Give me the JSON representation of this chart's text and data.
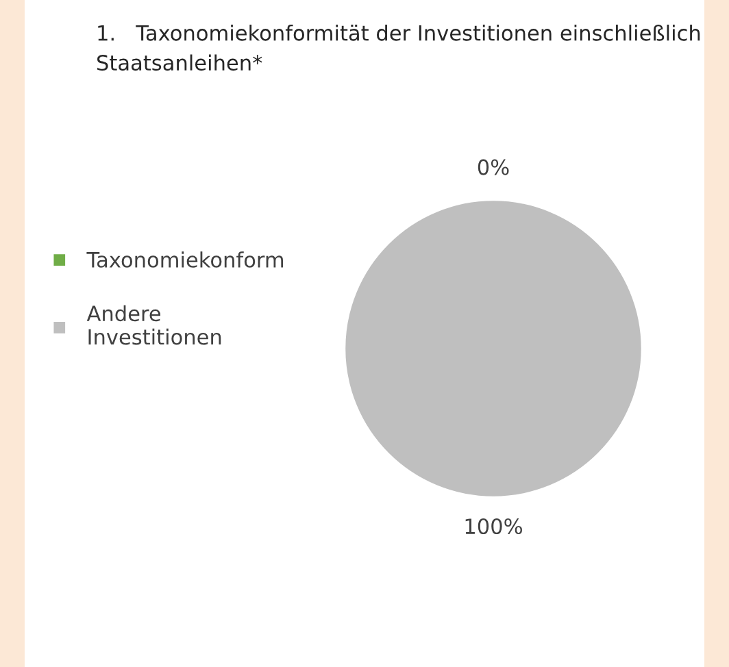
{
  "chart_data": {
    "type": "pie",
    "title": "1.   Taxonomiekonformität der Investitionen einschließlich Staatsanleihen*",
    "categories": [
      "Taxonomiekonform",
      "Andere Investitionen"
    ],
    "values": [
      0,
      100
    ],
    "colors": [
      "#70ad47",
      "#bfbfbf"
    ],
    "value_labels": [
      "0%",
      "100%"
    ],
    "legend": "left"
  }
}
